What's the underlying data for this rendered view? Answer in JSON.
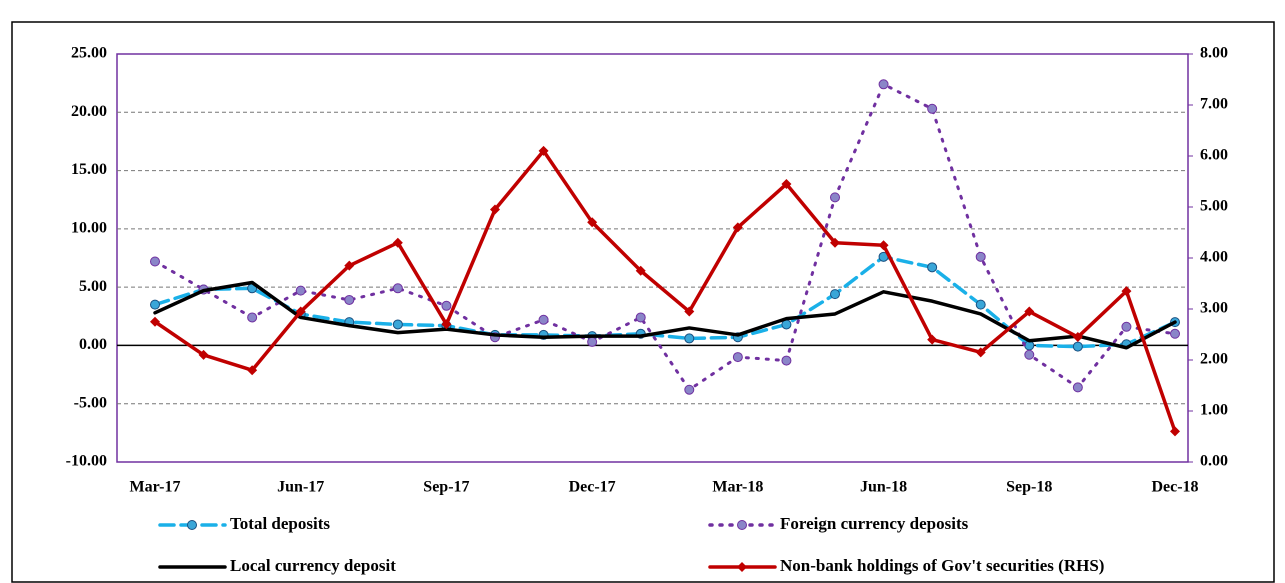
{
  "chart_data": {
    "type": "line",
    "categories": [
      "Mar-17",
      null,
      null,
      "Jun-17",
      null,
      null,
      "Sep-17",
      null,
      null,
      "Dec-17",
      null,
      null,
      "Mar-18",
      null,
      null,
      "Jun-18",
      null,
      null,
      "Sep-18",
      null,
      null,
      "Dec-18"
    ],
    "ylim": [
      -10,
      25
    ],
    "yticks": [
      {
        "value": -10,
        "label": "-10.00"
      },
      {
        "value": -5,
        "label": "-5.00"
      },
      {
        "value": 0,
        "label": "0.00"
      },
      {
        "value": 5,
        "label": "5.00"
      },
      {
        "value": 10,
        "label": "10.00"
      },
      {
        "value": 15,
        "label": "15.00"
      },
      {
        "value": 20,
        "label": "20.00"
      },
      {
        "value": 25,
        "label": "25.00"
      }
    ],
    "y2lim": [
      0,
      8
    ],
    "y2ticks": [
      {
        "value": 0,
        "label": "0.00"
      },
      {
        "value": 1,
        "label": "1.00"
      },
      {
        "value": 2,
        "label": "2.00"
      },
      {
        "value": 3,
        "label": "3.00"
      },
      {
        "value": 4,
        "label": "4.00"
      },
      {
        "value": 5,
        "label": "5.00"
      },
      {
        "value": 6,
        "label": "6.00"
      },
      {
        "value": 7,
        "label": "7.00"
      },
      {
        "value": 8,
        "label": "8.00"
      }
    ],
    "grid": true,
    "series": [
      {
        "name": "Total deposits",
        "color": "#1ab0e8",
        "marker": "circle",
        "line": "dashed",
        "values": [
          3.5,
          4.8,
          4.9,
          2.7,
          2.0,
          1.8,
          1.7,
          0.9,
          0.9,
          0.8,
          1.0,
          0.6,
          0.7,
          1.8,
          4.4,
          7.6,
          6.7,
          3.5,
          0.0,
          -0.1,
          0.1,
          2.0
        ]
      },
      {
        "name": "Foreign currency deposits",
        "color": "#7030a0",
        "marker": "circle",
        "line": "dotted",
        "values": [
          7.2,
          4.8,
          2.4,
          4.7,
          3.9,
          4.9,
          3.4,
          0.7,
          2.2,
          0.3,
          2.4,
          -3.8,
          -1.0,
          -1.3,
          12.7,
          22.4,
          20.3,
          7.6,
          -0.8,
          -3.6,
          1.6,
          1.0
        ]
      },
      {
        "name": "Local currency deposit",
        "color": "#000000",
        "marker": "none",
        "line": "solid",
        "values": [
          2.8,
          4.7,
          5.4,
          2.4,
          1.7,
          1.1,
          1.4,
          0.9,
          0.7,
          0.8,
          0.8,
          1.5,
          0.9,
          2.3,
          2.7,
          4.6,
          3.8,
          2.7,
          0.4,
          0.8,
          -0.2,
          2.0
        ]
      },
      {
        "name": "Non-bank holdings of Gov't securities (RHS)",
        "color": "#c00000",
        "marker": "diamond",
        "line": "solid",
        "axis": "y2",
        "values": [
          2.75,
          2.1,
          1.8,
          2.95,
          3.85,
          4.3,
          2.7,
          4.95,
          6.1,
          4.7,
          3.75,
          2.95,
          4.6,
          5.45,
          4.3,
          4.25,
          2.4,
          2.15,
          2.95,
          2.45,
          3.35,
          0.6
        ]
      }
    ]
  }
}
